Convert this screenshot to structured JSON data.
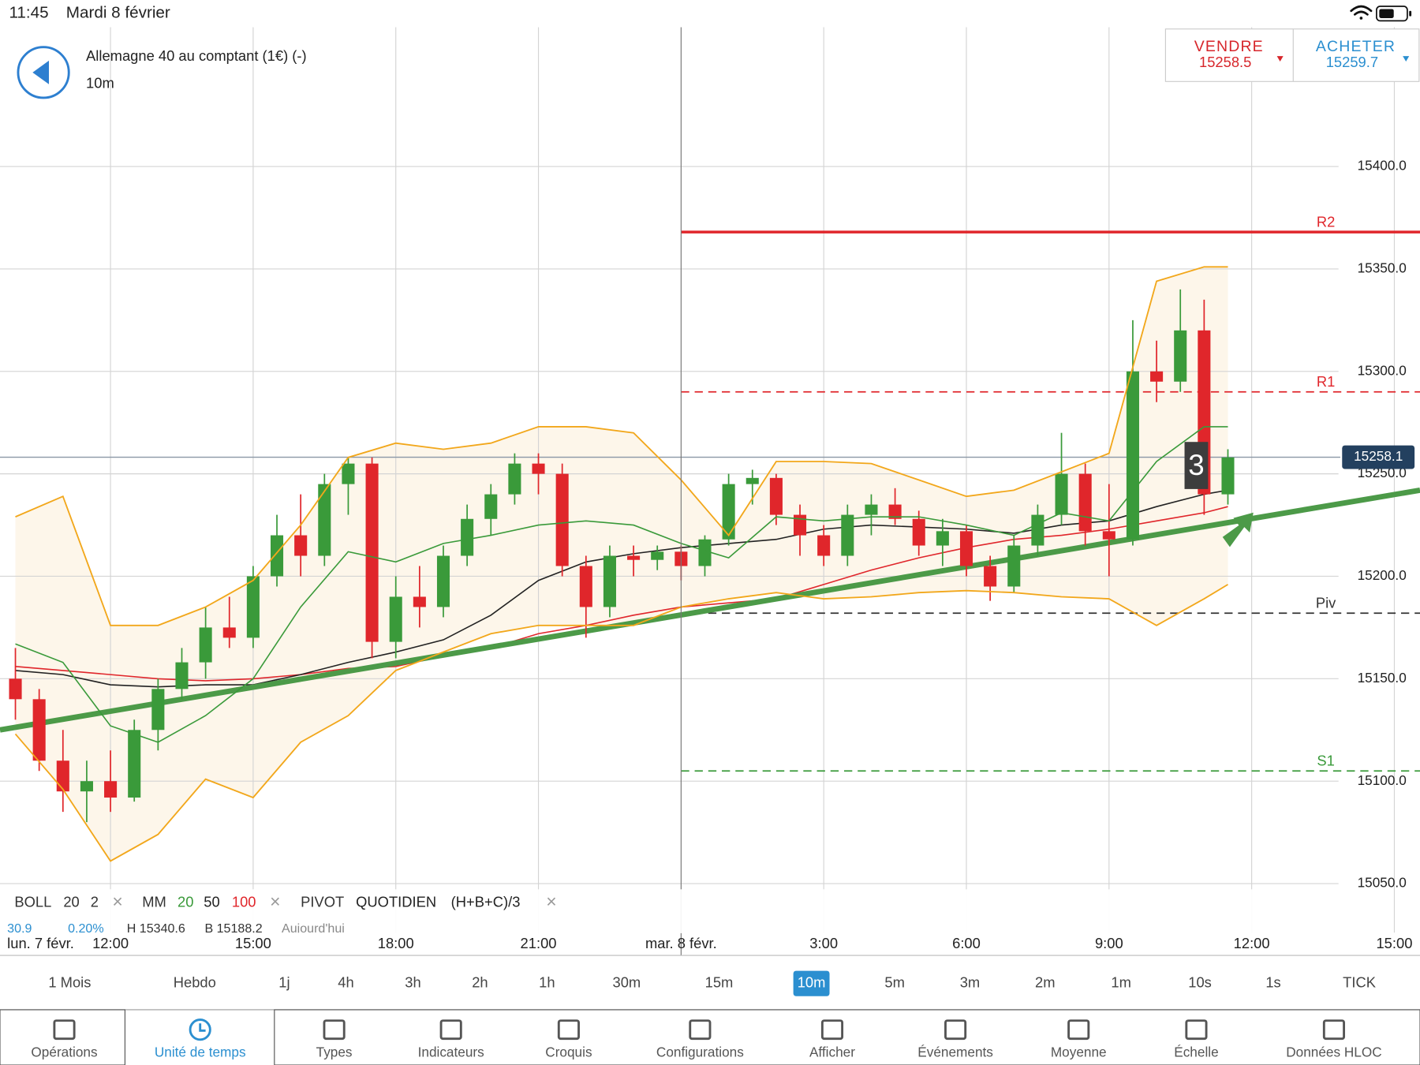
{
  "status_bar": {
    "time": "11:45",
    "date": "Mardi 8 février"
  },
  "instrument": {
    "name": "Allemagne 40 au comptant (1€) (-)",
    "interval": "10m"
  },
  "quote": {
    "sell_label": "VENDRE",
    "sell_price": 15258.5,
    "buy_label": "ACHETER",
    "buy_price": 15259.7
  },
  "chart_data": {
    "type": "candlestick",
    "xlim": [
      9.676,
      39.54
    ],
    "ylim": [
      15026,
      15468
    ],
    "xticks": [
      {
        "value": 12,
        "label": "12:00"
      },
      {
        "value": 15,
        "label": "15:00"
      },
      {
        "value": 18,
        "label": "18:00"
      },
      {
        "value": 21,
        "label": "21:00"
      },
      {
        "value": 24,
        "label": "mar. 8 févr."
      },
      {
        "value": 27,
        "label": "3:00"
      },
      {
        "value": 30,
        "label": "6:00"
      },
      {
        "value": 33,
        "label": "9:00"
      },
      {
        "value": 36,
        "label": "12:00"
      },
      {
        "value": 39,
        "label": "15:00"
      }
    ],
    "start_label": "lun. 7 févr.",
    "yticks": [
      {
        "value": 15050,
        "label": "15050.0"
      },
      {
        "value": 15100,
        "label": "15100.0"
      },
      {
        "value": 15150,
        "label": "15150.0"
      },
      {
        "value": 15200,
        "label": "15200.0"
      },
      {
        "value": 15250,
        "label": "15250.0"
      },
      {
        "value": 15300,
        "label": "15300.0"
      },
      {
        "value": 15350,
        "label": "15350.0"
      },
      {
        "value": 15400,
        "label": "15400.0"
      }
    ],
    "grid": true,
    "up_color": "#3a9a3a",
    "down_color": "#e0262b",
    "candles": {
      "x": [
        10.0,
        10.5,
        11.0,
        11.5,
        12.0,
        12.5,
        13.0,
        13.5,
        14.0,
        14.5,
        15.0,
        15.5,
        16.0,
        16.5,
        17.0,
        17.5,
        18.0,
        18.5,
        19.0,
        19.5,
        20.0,
        20.5,
        21.0,
        21.5,
        22.0,
        22.5,
        23.0,
        23.5,
        24.0,
        24.5,
        25.0,
        25.5,
        26.0,
        26.5,
        27.0,
        27.5,
        28.0,
        28.5,
        29.0,
        29.5,
        30.0,
        30.5,
        31.0,
        31.5,
        32.0,
        32.5,
        33.0,
        33.5,
        34.0,
        34.5,
        35.0,
        35.5
      ],
      "open": [
        15150,
        15140,
        15110,
        15095,
        15100,
        15092,
        15125,
        15145,
        15158,
        15175,
        15170,
        15200,
        15220,
        15210,
        15245,
        15255,
        15168,
        15190,
        15185,
        15210,
        15228,
        15240,
        15255,
        15250,
        15205,
        15185,
        15210,
        15208,
        15212,
        15205,
        15218,
        15245,
        15248,
        15230,
        15220,
        15210,
        15230,
        15235,
        15228,
        15215,
        15222,
        15205,
        15195,
        15215,
        15230,
        15250,
        15222,
        15218,
        15300,
        15295,
        15320,
        15240
      ],
      "high": [
        15165,
        15145,
        15125,
        15110,
        15115,
        15130,
        15150,
        15165,
        15185,
        15190,
        15205,
        15230,
        15240,
        15250,
        15258,
        15258,
        15200,
        15205,
        15215,
        15235,
        15245,
        15260,
        15260,
        15255,
        15210,
        15215,
        15215,
        15215,
        15215,
        15220,
        15250,
        15252,
        15250,
        15235,
        15225,
        15235,
        15240,
        15243,
        15232,
        15228,
        15225,
        15210,
        15220,
        15235,
        15270,
        15255,
        15245,
        15325,
        15315,
        15340,
        15335,
        15262
      ],
      "low": [
        15130,
        15105,
        15085,
        15080,
        15085,
        15090,
        15115,
        15140,
        15150,
        15165,
        15165,
        15195,
        15200,
        15205,
        15230,
        15160,
        15160,
        15175,
        15180,
        15205,
        15220,
        15235,
        15240,
        15200,
        15170,
        15180,
        15200,
        15203,
        15198,
        15200,
        15215,
        15235,
        15225,
        15210,
        15205,
        15205,
        15220,
        15225,
        15210,
        15205,
        15200,
        15188,
        15192,
        15210,
        15225,
        15215,
        15200,
        15215,
        15285,
        15290,
        15230,
        15235
      ],
      "close": [
        15140,
        15110,
        15095,
        15100,
        15092,
        15125,
        15145,
        15158,
        15175,
        15170,
        15200,
        15220,
        15210,
        15245,
        15255,
        15168,
        15190,
        15185,
        15210,
        15228,
        15240,
        15255,
        15250,
        15205,
        15185,
        15210,
        15208,
        15212,
        15205,
        15218,
        15245,
        15248,
        15230,
        15220,
        15210,
        15230,
        15235,
        15228,
        15215,
        15222,
        15205,
        15195,
        15215,
        15230,
        15250,
        15222,
        15218,
        15300,
        15295,
        15320,
        15240,
        15258
      ]
    },
    "indicators": {
      "x": [
        10,
        11,
        12,
        13,
        14,
        15,
        16,
        17,
        18,
        19,
        20,
        21,
        22,
        23,
        24,
        25,
        26,
        27,
        28,
        29,
        30,
        31,
        32,
        33,
        34,
        35,
        35.5
      ],
      "boll_upper": [
        15229,
        15239,
        15176,
        15176,
        15185,
        15198,
        15225,
        15258,
        15265,
        15262,
        15265,
        15273,
        15273,
        15270,
        15247,
        15220,
        15256,
        15256,
        15255,
        15247,
        15239,
        15242,
        15251,
        15260,
        15344,
        15351,
        15351
      ],
      "boll_lower": [
        15123,
        15096,
        15061,
        15074,
        15101,
        15092,
        15119,
        15132,
        15154,
        15163,
        15172,
        15176,
        15176,
        15176,
        15185,
        15189,
        15192,
        15189,
        15190,
        15192,
        15193,
        15192,
        15190,
        15189,
        15176,
        15189,
        15196
      ],
      "ma20": [
        15167,
        15158,
        15127,
        15119,
        15132,
        15150,
        15185,
        15212,
        15207,
        15216,
        15220,
        15225,
        15227,
        15225,
        15216,
        15209,
        15229,
        15227,
        15229,
        15229,
        15225,
        15220,
        15231,
        15227,
        15256,
        15273,
        15273
      ],
      "ma50": [
        15154,
        15152,
        15147,
        15146,
        15147,
        15147,
        15152,
        15158,
        15163,
        15169,
        15181,
        15198,
        15207,
        15211,
        15214,
        15216,
        15218,
        15223,
        15225,
        15224,
        15223,
        15221,
        15225,
        15227,
        15234,
        15240,
        15242
      ],
      "ma100": [
        15156,
        15154,
        15152,
        15150,
        15149,
        15150,
        15152,
        15155,
        15156,
        15161,
        15165,
        15172,
        15176,
        15181,
        15185,
        15187,
        15189,
        15196,
        15203,
        15209,
        15214,
        15218,
        15220,
        15223,
        15227,
        15231,
        15234
      ],
      "boll_color": "#f2a71b",
      "ma20_color": "#3a9a3a",
      "ma50_color": "#222222",
      "ma100_color": "#e0262b"
    },
    "levels_from": 24,
    "levels": [
      {
        "label": "R2",
        "value": 15368,
        "color": "#e0262b",
        "dashed": false
      },
      {
        "label": "R1",
        "value": 15290,
        "color": "#e0262b",
        "dashed": true
      },
      {
        "label": "Piv",
        "value": 15182,
        "color": "#333333",
        "dashed": true
      },
      {
        "label": "S1",
        "value": 15105,
        "color": "#3a9a3a",
        "dashed": true
      }
    ],
    "trendline": {
      "x": [
        9.676,
        39.54
      ],
      "values": [
        15125,
        15242
      ],
      "color": "#4c9a48"
    },
    "last_price": 15258.1,
    "badge": "3"
  },
  "indicator_legend": {
    "boll": "BOLL",
    "boll_period": "20",
    "boll_dev": "2",
    "mm": "MM",
    "mm_1": "20",
    "mm_2": "50",
    "mm_3": "100",
    "pivot": "PIVOT",
    "pivot_mode": "QUOTIDIEN",
    "pivot_formula": "(H+B+C)/3",
    "close": "×"
  },
  "info_row": [
    "30,9",
    "0,20%",
    "H 15340,6",
    "B 15188,2",
    "Aujourd'hui"
  ],
  "timeframes": [
    {
      "label": "1 Mois"
    },
    {
      "label": "Hebdo"
    },
    {
      "label": "1j"
    },
    {
      "label": "4h"
    },
    {
      "label": "3h"
    },
    {
      "label": "2h"
    },
    {
      "label": "1h"
    },
    {
      "label": "30m"
    },
    {
      "label": "15m"
    },
    {
      "label": "10m",
      "selected": true
    },
    {
      "label": "5m"
    },
    {
      "label": "3m"
    },
    {
      "label": "2m"
    },
    {
      "label": "1m"
    },
    {
      "label": "10s"
    },
    {
      "label": "1s"
    },
    {
      "label": "TICK"
    }
  ],
  "tabs": [
    {
      "label": "Opérations"
    },
    {
      "label": "Unité de temps",
      "selected": true
    },
    {
      "label": "Types"
    },
    {
      "label": "Indicateurs"
    },
    {
      "label": "Croquis"
    },
    {
      "label": "Configurations"
    },
    {
      "label": "Afficher"
    },
    {
      "label": "Événements"
    },
    {
      "label": "Moyenne"
    },
    {
      "label": "Échelle"
    },
    {
      "label": "Données HLOC"
    }
  ]
}
